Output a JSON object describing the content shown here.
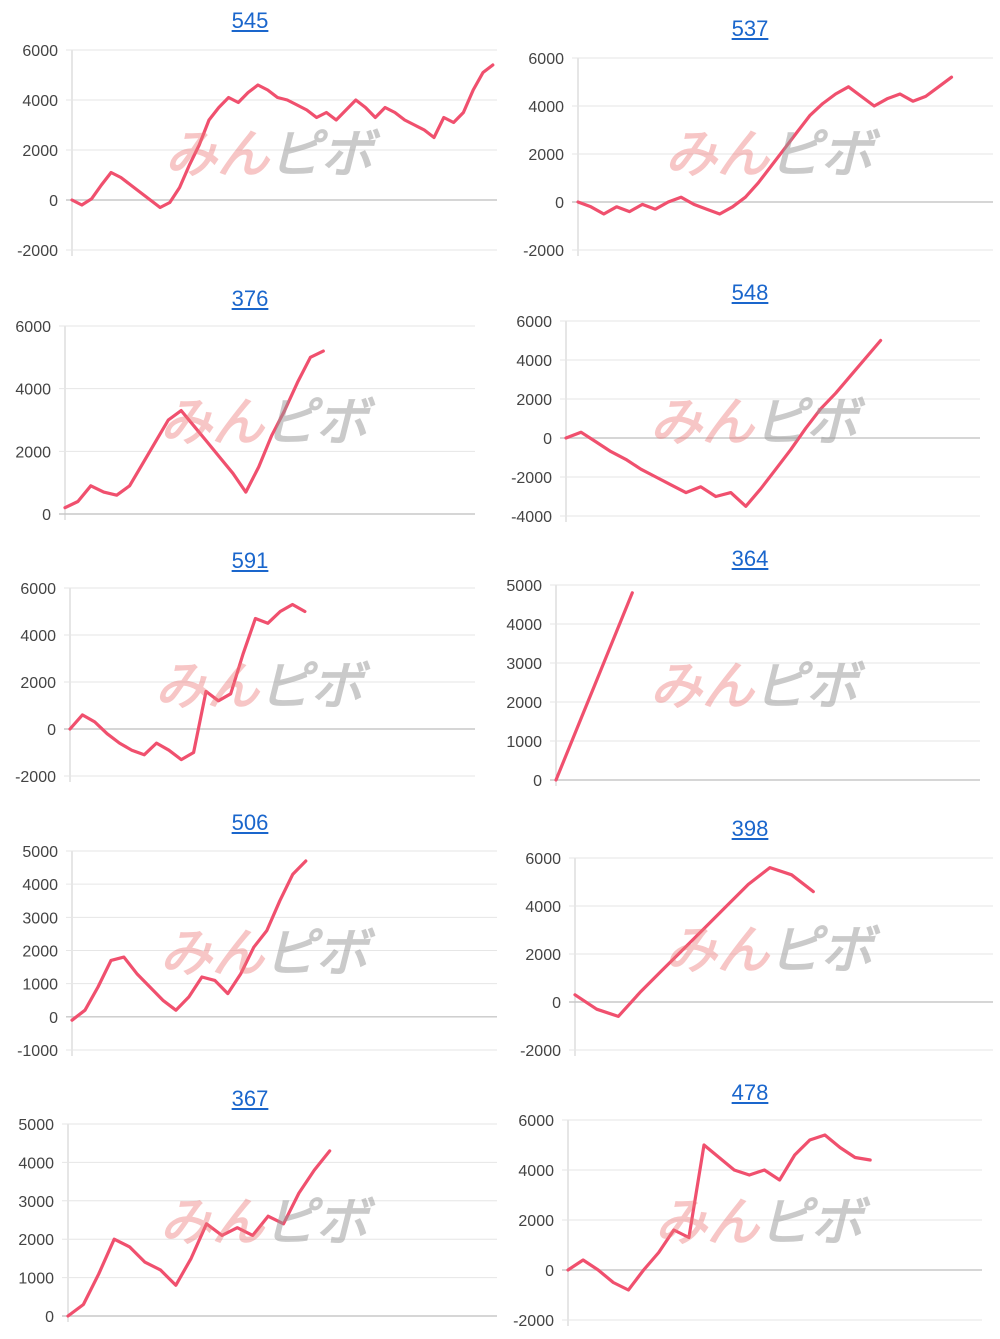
{
  "watermark": {
    "text_a": "みん",
    "text_b": "ピボ",
    "color_a": "#ec7878",
    "color_b": "#969696"
  },
  "line_color": "#f0506e",
  "title_color": "#1a66cc",
  "chart_data": [
    {
      "type": "line",
      "title": "545",
      "ylim": [
        -2000,
        6000
      ],
      "yticks": [
        -2000,
        0,
        2000,
        4000,
        6000
      ],
      "values": [
        0,
        -200,
        50,
        600,
        1100,
        900,
        600,
        300,
        0,
        -300,
        -100,
        500,
        1400,
        2200,
        3200,
        3700,
        4100,
        3900,
        4300,
        4600,
        4400,
        4100,
        4000,
        3800,
        3600,
        3300,
        3500,
        3200,
        3600,
        4000,
        3700,
        3300,
        3700,
        3500,
        3200,
        3000,
        2800,
        2500,
        3300,
        3100,
        3500,
        4400,
        5100,
        5400
      ],
      "grid": true
    },
    {
      "type": "line",
      "title": "537",
      "ylim": [
        -2000,
        6000
      ],
      "yticks": [
        -2000,
        0,
        2000,
        4000,
        6000
      ],
      "values": [
        0,
        -200,
        -500,
        -200,
        -400,
        -100,
        -300,
        0,
        200,
        -100,
        -300,
        -500,
        -200,
        200,
        800,
        1500,
        2200,
        2900,
        3600,
        4100,
        4500,
        4800,
        4400,
        4000,
        4300,
        4500,
        4200,
        4400,
        4800,
        5200
      ],
      "grid": true
    },
    {
      "type": "line",
      "title": "376",
      "ylim": [
        0,
        6000
      ],
      "yticks": [
        0,
        2000,
        4000,
        6000
      ],
      "values": [
        200,
        400,
        900,
        700,
        600,
        900,
        1600,
        2300,
        3000,
        3300,
        2800,
        2300,
        1800,
        1300,
        700,
        1500,
        2500,
        3300,
        4200,
        5000,
        5200
      ],
      "grid": true
    },
    {
      "type": "line",
      "title": "548",
      "ylim": [
        -4000,
        6000
      ],
      "yticks": [
        -4000,
        -2000,
        0,
        2000,
        4000,
        6000
      ],
      "values": [
        0,
        300,
        -200,
        -700,
        -1100,
        -1600,
        -2000,
        -2400,
        -2800,
        -2500,
        -3000,
        -2800,
        -3500,
        -2600,
        -1600,
        -600,
        500,
        1500,
        2300,
        3200,
        4100,
        5000
      ],
      "grid": true
    },
    {
      "type": "line",
      "title": "591",
      "ylim": [
        -2000,
        6000
      ],
      "yticks": [
        -2000,
        0,
        2000,
        4000,
        6000
      ],
      "values": [
        0,
        600,
        300,
        -200,
        -600,
        -900,
        -1100,
        -600,
        -900,
        -1300,
        -1000,
        1600,
        1200,
        1500,
        3200,
        4700,
        4500,
        5000,
        5300,
        5000
      ],
      "grid": true
    },
    {
      "type": "line",
      "title": "364",
      "ylim": [
        0,
        5000
      ],
      "yticks": [
        0,
        1000,
        2000,
        3000,
        4000,
        5000
      ],
      "values": [
        0,
        800,
        1600,
        2400,
        3200,
        4000,
        4800
      ],
      "grid": true
    },
    {
      "type": "line",
      "title": "506",
      "ylim": [
        -1000,
        5000
      ],
      "yticks": [
        -1000,
        0,
        1000,
        2000,
        3000,
        4000,
        5000
      ],
      "values": [
        -100,
        200,
        900,
        1700,
        1800,
        1300,
        900,
        500,
        200,
        600,
        1200,
        1100,
        700,
        1300,
        2100,
        2600,
        3500,
        4300,
        4700
      ],
      "grid": true
    },
    {
      "type": "line",
      "title": "398",
      "ylim": [
        -2000,
        6000
      ],
      "yticks": [
        -2000,
        0,
        2000,
        4000,
        6000
      ],
      "values": [
        300,
        -300,
        -600,
        400,
        1300,
        2200,
        3100,
        4000,
        4900,
        5600,
        5300,
        4600
      ],
      "grid": true
    },
    {
      "type": "line",
      "title": "367",
      "ylim": [
        0,
        5000
      ],
      "yticks": [
        0,
        1000,
        2000,
        3000,
        4000,
        5000
      ],
      "values": [
        0,
        300,
        1100,
        2000,
        1800,
        1400,
        1200,
        800,
        1500,
        2400,
        2100,
        2300,
        2100,
        2600,
        2400,
        3200,
        3800,
        4300
      ],
      "grid": true
    },
    {
      "type": "line",
      "title": "478",
      "ylim": [
        -2000,
        6000
      ],
      "yticks": [
        -2000,
        0,
        2000,
        4000,
        6000
      ],
      "values": [
        0,
        400,
        0,
        -500,
        -800,
        0,
        700,
        1600,
        1300,
        5000,
        4500,
        4000,
        3800,
        4000,
        3600,
        4600,
        5200,
        5400,
        4900,
        4500,
        4400
      ],
      "grid": true
    }
  ]
}
